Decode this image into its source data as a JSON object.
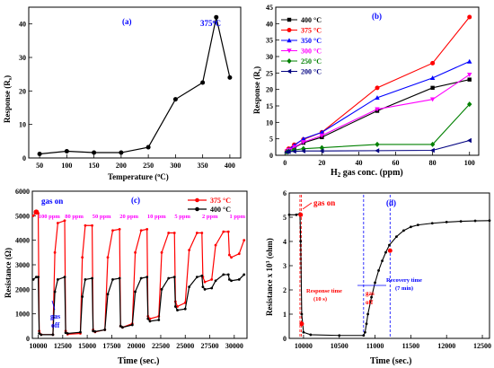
{
  "chart_data": [
    {
      "panel": "(a)",
      "type": "line",
      "xlabel": "Temperature (°C)",
      "ylabel": "Response (Rs)",
      "xlim": [
        30,
        420
      ],
      "ylim": [
        0,
        45
      ],
      "xticks": [
        50,
        100,
        150,
        200,
        250,
        300,
        350,
        400
      ],
      "yticks": [
        0,
        10,
        20,
        30,
        40
      ],
      "annotation": "375 °C",
      "series": [
        {
          "x": [
            50,
            100,
            150,
            200,
            250,
            300,
            350,
            375,
            400
          ],
          "y": [
            1.2,
            2.0,
            1.6,
            1.6,
            3.2,
            17.5,
            22.5,
            42.0,
            24.0
          ]
        }
      ]
    },
    {
      "panel": "(b)",
      "type": "line",
      "xlabel": "H2 gas conc. (ppm)",
      "ylabel": "Response (Rs)",
      "xlim": [
        -5,
        105
      ],
      "ylim": [
        0,
        45
      ],
      "xticks": [
        0,
        20,
        40,
        60,
        80,
        100
      ],
      "yticks": [
        0,
        5,
        10,
        15,
        20,
        25,
        30,
        35,
        40,
        45
      ],
      "x": [
        1,
        2,
        5,
        10,
        20,
        50,
        80,
        100
      ],
      "series": [
        {
          "name": "400 °C",
          "color": "#000000",
          "marker": "square",
          "values": [
            1.1,
            1.5,
            2.3,
            3.8,
            5.5,
            13.5,
            20.5,
            23.0
          ]
        },
        {
          "name": "375 °C",
          "color": "#ff0000",
          "marker": "circle",
          "values": [
            1.3,
            2.0,
            3.2,
            4.8,
            7.0,
            20.5,
            28.0,
            42.0
          ]
        },
        {
          "name": "350 °C",
          "color": "#0000ff",
          "marker": "triangle",
          "values": [
            1.2,
            1.8,
            3.0,
            5.0,
            7.0,
            17.5,
            23.5,
            28.5
          ]
        },
        {
          "name": "300 °C",
          "color": "#ff00ff",
          "marker": "triangle-down",
          "values": [
            1.1,
            1.6,
            2.5,
            4.0,
            6.0,
            14.0,
            17.0,
            24.5
          ]
        },
        {
          "name": "250 °C",
          "color": "#008000",
          "marker": "diamond",
          "values": [
            1.0,
            1.2,
            1.6,
            2.0,
            2.3,
            3.3,
            3.3,
            15.5
          ]
        },
        {
          "name": "200 °C",
          "color": "#000080",
          "marker": "triangle-left",
          "values": [
            1.0,
            1.1,
            1.2,
            1.3,
            1.3,
            1.4,
            1.5,
            4.5
          ]
        }
      ],
      "legend_position": "top-left"
    },
    {
      "panel": "(c)",
      "type": "line",
      "xlabel": "Time (sec.)",
      "ylabel": "Resistance (Ω)",
      "xlim": [
        9400,
        31300
      ],
      "ylim": [
        0,
        6000
      ],
      "xticks": [
        10000,
        12500,
        15000,
        17500,
        20000,
        22500,
        25000,
        27500,
        30000
      ],
      "yticks": [
        0,
        1000,
        2000,
        3000,
        4000,
        5000,
        6000
      ],
      "annotations": [
        "gas on",
        "gas off",
        "100 ppm",
        "80 ppm",
        "50 ppm",
        "20 ppm",
        "10 ppm",
        "5 ppm",
        "2 ppm",
        "1 ppm"
      ],
      "series": [
        {
          "name": "375 °C",
          "color": "#ff0000",
          "x": [
            9500,
            9700,
            10000,
            10100,
            10300,
            11500,
            11700,
            12000,
            12700,
            12800,
            13000,
            14300,
            14500,
            14800,
            15500,
            15600,
            15800,
            16800,
            17100,
            17600,
            18300,
            18400,
            18600,
            19600,
            19900,
            20500,
            21100,
            21200,
            21400,
            22300,
            22600,
            23300,
            23900,
            24000,
            24200,
            25000,
            25400,
            26200,
            26700,
            26800,
            27000,
            27700,
            28100,
            28900,
            29400,
            29500,
            29700,
            30500,
            31000
          ],
          "y": [
            5000,
            5100,
            5100,
            300,
            150,
            150,
            3500,
            4700,
            4800,
            300,
            170,
            200,
            3300,
            4600,
            4600,
            350,
            260,
            350,
            3300,
            4400,
            4450,
            500,
            450,
            600,
            3500,
            4400,
            4450,
            900,
            800,
            900,
            3500,
            4300,
            4300,
            1500,
            1300,
            1450,
            3600,
            4300,
            4300,
            2500,
            2300,
            2400,
            3800,
            4350,
            4350,
            3400,
            3300,
            3450,
            4000
          ]
        },
        {
          "name": "400 °C",
          "color": "#000000",
          "x": [
            9500,
            9800,
            10000,
            10100,
            10300,
            11500,
            11700,
            12000,
            12700,
            12800,
            13000,
            14300,
            14500,
            14800,
            15500,
            15600,
            15800,
            16800,
            17100,
            17600,
            18300,
            18400,
            18600,
            19600,
            19900,
            20500,
            21100,
            21200,
            21400,
            22300,
            22600,
            23300,
            23900,
            24000,
            24200,
            25000,
            25400,
            26200,
            26700,
            26800,
            27000,
            27700,
            28100,
            28900,
            29400,
            29500,
            29700,
            30500,
            31000
          ],
          "y": [
            2400,
            2500,
            2500,
            200,
            150,
            150,
            1900,
            2400,
            2500,
            230,
            200,
            250,
            1700,
            2400,
            2450,
            300,
            280,
            350,
            1800,
            2400,
            2450,
            500,
            450,
            550,
            1900,
            2450,
            2500,
            800,
            700,
            750,
            2000,
            2450,
            2500,
            1300,
            1150,
            1200,
            2100,
            2500,
            2550,
            2100,
            2000,
            2050,
            2350,
            2600,
            2600,
            2400,
            2350,
            2400,
            2600
          ]
        }
      ],
      "legend_position": "top-right"
    },
    {
      "panel": "(d)",
      "type": "line",
      "xlabel": "Time (sec.)",
      "ylabel": "Resistance x 10³ (ohm)",
      "xlim": [
        9800,
        12600
      ],
      "ylim": [
        0,
        6
      ],
      "xticks": [
        10000,
        10500,
        11000,
        11500,
        12000,
        12500
      ],
      "yticks": [
        0,
        1,
        2,
        3,
        4,
        5,
        6
      ],
      "annotations": [
        "gas on",
        "Response time (10 s)",
        "gas off",
        "Recovery time (7 min)"
      ],
      "series": [
        {
          "color": "#ff0000",
          "x": [
            9800,
            9900,
            9950,
            9960,
            9975,
            10000,
            10100,
            10500,
            10840,
            10860,
            10880,
            10900,
            10950,
            11000,
            11050,
            11100,
            11150,
            11200,
            11300,
            11400,
            11500,
            11600,
            11800,
            12000,
            12200,
            12400,
            12600
          ],
          "y": [
            5.1,
            5.1,
            5.15,
            4.0,
            1.0,
            0.25,
            0.15,
            0.12,
            0.12,
            0.25,
            0.6,
            1.0,
            1.7,
            2.3,
            2.8,
            3.2,
            3.55,
            3.85,
            4.2,
            4.45,
            4.6,
            4.68,
            4.75,
            4.8,
            4.83,
            4.85,
            4.86
          ]
        }
      ],
      "vlines": [
        9950,
        9970,
        10840,
        11210
      ]
    }
  ],
  "labels": {
    "a": {
      "panel": "(a)",
      "xlabel": "Temperature (",
      "xunit": "C)",
      "ylabel": "Response (R",
      "ysub": "s",
      "ytail": ")",
      "annot": "375",
      "annotUnit": "C"
    },
    "b": {
      "panel": "(b)",
      "xlabel_h": "H",
      "xlabel_sub": "2",
      "xlabel_rest": " gas conc. (ppm)",
      "ylabel": "Response (R",
      "ysub": "s",
      "ytail": ")"
    },
    "c": {
      "panel": "(c)",
      "xlabel": "Time (sec.)",
      "ylabel": "Resistance (Ω)",
      "gas_on": "gas on",
      "gas": "gas",
      "off": "off",
      "conc": [
        "100 ppm",
        "80 ppm",
        "50 ppm",
        "20 ppm",
        "10 ppm",
        "5 ppm",
        "2 ppm",
        "1 ppm"
      ]
    },
    "d": {
      "panel": "(d)",
      "xlabel": "Time (sec.)",
      "ylabel": "Resistance x 10",
      "ysup": "3",
      "ytail": " (ohm)",
      "gas_on": "gas on",
      "resp1": "Response time",
      "resp2": "(10 s)",
      "gas": "gas",
      "off": "off",
      "rec1": "Recovery time",
      "rec2": "(7 min)"
    }
  }
}
